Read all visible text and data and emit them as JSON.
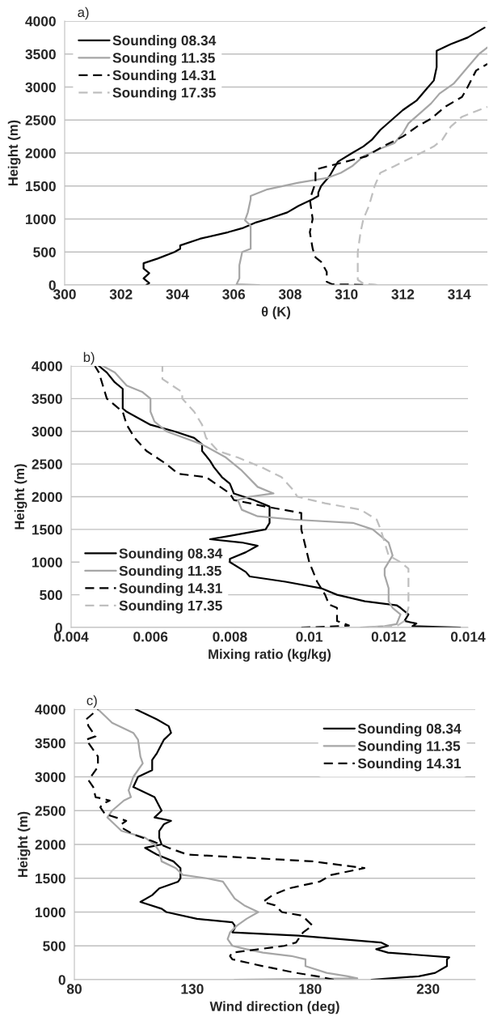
{
  "chart_data": [
    {
      "type": "line",
      "annotations": [
        "a)"
      ],
      "xlabel": "θ (K)",
      "ylabel": "Height (m)",
      "xlim": [
        300,
        315
      ],
      "xticks": [
        300,
        302,
        304,
        306,
        308,
        310,
        312,
        314
      ],
      "ylim": [
        0,
        4000
      ],
      "yticks": [
        0,
        500,
        1000,
        1500,
        2000,
        2500,
        3000,
        3500,
        4000
      ],
      "grid": "y",
      "legend": "top left",
      "series": [
        {
          "name": "Sounding 08.34",
          "color": "#000000",
          "line_style": "solid",
          "x": [
            302.9,
            303.0,
            302.8,
            303.0,
            302.8,
            302.8,
            303.3,
            303.9,
            304.1,
            304.1,
            304.8,
            305.8,
            306.3,
            306.8,
            307.2,
            307.9,
            308.3,
            308.8,
            309.0,
            309.0,
            309.1,
            309.4,
            309.6,
            309.7,
            310.2,
            310.6,
            310.9,
            311.2,
            311.6,
            312.0,
            312.5,
            312.8,
            313.1,
            313.2,
            313.2,
            313.7,
            314.3,
            314.9
          ],
          "values": [
            0,
            30,
            100,
            180,
            250,
            330,
            400,
            500,
            550,
            600,
            700,
            800,
            860,
            950,
            1000,
            1100,
            1200,
            1300,
            1350,
            1400,
            1500,
            1650,
            1800,
            1870,
            2000,
            2100,
            2200,
            2350,
            2500,
            2650,
            2800,
            2950,
            3100,
            3300,
            3550,
            3650,
            3750,
            3900
          ]
        },
        {
          "name": "Sounding 11.35",
          "color": "#a6a6a6",
          "line_style": "solid",
          "x": [
            306.9,
            306.1,
            306.2,
            306.2,
            306.3,
            306.6,
            306.6,
            306.6,
            306.4,
            306.5,
            306.6,
            306.6,
            307.2,
            308.3,
            309.3,
            309.8,
            310.2,
            310.6,
            311.1,
            311.7,
            312.0,
            312.2,
            312.6,
            313.0,
            313.3,
            313.8,
            314.3,
            314.7,
            315.0
          ],
          "values": [
            0,
            10,
            100,
            300,
            500,
            550,
            700,
            900,
            980,
            1100,
            1300,
            1350,
            1450,
            1550,
            1620,
            1700,
            1800,
            1950,
            2050,
            2150,
            2300,
            2450,
            2600,
            2750,
            2900,
            3050,
            3300,
            3500,
            3600
          ]
        },
        {
          "name": "Sounding 14.31",
          "color": "#000000",
          "line_style": "dashed",
          "x": [
            311.1,
            309.5,
            309.3,
            309.3,
            309.1,
            308.9,
            308.8,
            308.7,
            308.8,
            308.7,
            308.9,
            308.9,
            309.8,
            310.7,
            311.3,
            312.0,
            312.5,
            313.0,
            313.5,
            314.1,
            314.3,
            314.6,
            315.0
          ],
          "values": [
            0,
            10,
            50,
            200,
            350,
            420,
            550,
            800,
            1000,
            1300,
            1550,
            1750,
            1850,
            1950,
            2100,
            2250,
            2400,
            2520,
            2700,
            2850,
            3000,
            3250,
            3350
          ]
        },
        {
          "name": "Sounding 17.35",
          "color": "#bfbfbf",
          "line_style": "dashed",
          "x": [
            311.1,
            310.6,
            310.4,
            310.4,
            310.4,
            310.5,
            310.6,
            310.8,
            311.0,
            311.2,
            311.7,
            312.4,
            313.1,
            313.4,
            313.7,
            314.1,
            315.0
          ],
          "values": [
            0,
            20,
            80,
            200,
            500,
            800,
            1000,
            1200,
            1500,
            1700,
            1800,
            1950,
            2100,
            2200,
            2400,
            2550,
            2700
          ]
        }
      ]
    },
    {
      "type": "line",
      "annotations": [
        "b)"
      ],
      "xlabel": "Mixing ratio (kg/kg)",
      "ylabel": "Height (m)",
      "xlim": [
        0.004,
        0.014
      ],
      "xticks": [
        0.004,
        0.006,
        0.008,
        0.01,
        0.012,
        0.014
      ],
      "ylim": [
        0,
        4000
      ],
      "yticks": [
        0,
        500,
        1000,
        1500,
        2000,
        2500,
        3000,
        3500,
        4000
      ],
      "grid": "y",
      "legend": "bottom left",
      "series": [
        {
          "name": "Sounding 08.34",
          "color": "#000000",
          "line_style": "solid",
          "x": [
            0.0138,
            0.0126,
            0.0127,
            0.0124,
            0.0125,
            0.0123,
            0.0122,
            0.0114,
            0.0107,
            0.0103,
            0.0094,
            0.0085,
            0.0084,
            0.008,
            0.008,
            0.0084,
            0.0087,
            0.0083,
            0.0075,
            0.008,
            0.0089,
            0.009,
            0.009,
            0.0086,
            0.0081,
            0.008,
            0.0078,
            0.0076,
            0.0075,
            0.0073,
            0.0073,
            0.0071,
            0.0066,
            0.006,
            0.0054,
            0.0053,
            0.0053,
            0.0051,
            0.0049,
            0.0047
          ],
          "values": [
            0,
            20,
            60,
            100,
            200,
            300,
            340,
            400,
            500,
            600,
            700,
            780,
            850,
            1000,
            1050,
            1150,
            1250,
            1300,
            1350,
            1400,
            1500,
            1600,
            1850,
            1950,
            2050,
            2200,
            2300,
            2450,
            2550,
            2700,
            2800,
            2900,
            3000,
            3100,
            3300,
            3350,
            3650,
            3750,
            3900,
            4000
          ]
        },
        {
          "name": "Sounding 11.35",
          "color": "#a6a6a6",
          "line_style": "solid",
          "x": [
            0.0113,
            0.0119,
            0.0122,
            0.0123,
            0.0121,
            0.012,
            0.012,
            0.0119,
            0.0119,
            0.0121,
            0.012,
            0.0116,
            0.0111,
            0.0096,
            0.0087,
            0.0083,
            0.0082,
            0.0085,
            0.0091,
            0.0087,
            0.0083,
            0.0079,
            0.0073,
            0.0064,
            0.0061,
            0.006,
            0.006,
            0.0058,
            0.0054,
            0.0051,
            0.0048
          ],
          "values": [
            0,
            20,
            50,
            200,
            300,
            400,
            600,
            800,
            900,
            1100,
            1300,
            1500,
            1600,
            1650,
            1700,
            1800,
            1950,
            2000,
            2050,
            2150,
            2400,
            2600,
            2800,
            3000,
            3150,
            3300,
            3500,
            3600,
            3700,
            3900,
            4000
          ]
        },
        {
          "name": "Sounding 14.31",
          "color": "#000000",
          "line_style": "dashed",
          "x": [
            0.0098,
            0.0104,
            0.011,
            0.0107,
            0.0107,
            0.0105,
            0.0104,
            0.0102,
            0.01,
            0.0098,
            0.0098,
            0.0089,
            0.0081,
            0.008,
            0.0074,
            0.0067,
            0.0064,
            0.0059,
            0.0056,
            0.0054,
            0.0053,
            0.0049,
            0.0048,
            0.0047,
            0.0046
          ],
          "values": [
            0,
            10,
            30,
            100,
            300,
            350,
            500,
            700,
            1000,
            1500,
            1750,
            1850,
            1950,
            2050,
            2300,
            2350,
            2500,
            2700,
            2900,
            3100,
            3300,
            3500,
            3700,
            3900,
            4000
          ]
        },
        {
          "name": "Sounding 17.35",
          "color": "#bfbfbf",
          "line_style": "dashed",
          "x": [
            0.0115,
            0.0122,
            0.0124,
            0.0125,
            0.0125,
            0.0125,
            0.0125,
            0.0123,
            0.012,
            0.0118,
            0.0117,
            0.0113,
            0.0104,
            0.0097,
            0.0096,
            0.0093,
            0.0088,
            0.0082,
            0.0077,
            0.0074,
            0.0073,
            0.0071,
            0.0068,
            0.0068,
            0.0063,
            0.0063
          ],
          "values": [
            0,
            20,
            100,
            300,
            500,
            700,
            900,
            1000,
            1100,
            1500,
            1650,
            1800,
            1900,
            2000,
            2100,
            2300,
            2450,
            2600,
            2700,
            2900,
            3100,
            3300,
            3500,
            3600,
            3800,
            4000
          ]
        }
      ]
    },
    {
      "type": "line",
      "annotations": [
        "c)"
      ],
      "xlabel": "Wind direction (deg)",
      "ylabel": "Height (m)",
      "xlim": [
        80,
        250
      ],
      "xticks": [
        80,
        130,
        180,
        230
      ],
      "ylim": [
        0,
        4000
      ],
      "yticks": [
        0,
        500,
        1000,
        1500,
        2000,
        2500,
        3000,
        3500,
        4000
      ],
      "grid": "y",
      "legend": "top right",
      "series": [
        {
          "name": "Sounding 08.34",
          "color": "#000000",
          "line_style": "solid",
          "x": [
            206,
            226,
            233,
            238,
            238,
            239,
            213,
            208,
            213,
            210,
            175,
            147,
            148,
            148,
            147,
            132,
            119,
            117,
            108,
            113,
            116,
            124,
            125,
            125,
            122,
            115,
            110,
            117,
            116,
            116,
            118,
            121,
            114,
            117,
            114,
            105,
            107,
            113,
            113,
            115,
            118,
            121,
            120,
            115,
            106
          ],
          "values": [
            0,
            50,
            100,
            200,
            300,
            330,
            400,
            450,
            500,
            550,
            650,
            700,
            760,
            800,
            850,
            900,
            1000,
            1050,
            1150,
            1250,
            1350,
            1450,
            1500,
            1650,
            1750,
            1850,
            1950,
            2000,
            2100,
            2200,
            2300,
            2350,
            2400,
            2500,
            2700,
            2850,
            3000,
            3100,
            3250,
            3350,
            3550,
            3650,
            3750,
            3850,
            4000
          ]
        },
        {
          "name": "Sounding 11.35",
          "color": "#a6a6a6",
          "line_style": "solid",
          "x": [
            148,
            200,
            196,
            187,
            178,
            178,
            172,
            160,
            153,
            147,
            145,
            146,
            149,
            153,
            158,
            152,
            148,
            143,
            136,
            126,
            123,
            117,
            116,
            114,
            110,
            100,
            97,
            94,
            96,
            101,
            104,
            103,
            105,
            109,
            108,
            107,
            105,
            96,
            90
          ],
          "values": [
            0,
            20,
            50,
            100,
            200,
            300,
            350,
            400,
            450,
            500,
            600,
            700,
            800,
            900,
            1000,
            1100,
            1200,
            1450,
            1500,
            1550,
            1650,
            1750,
            1900,
            2000,
            2100,
            2200,
            2300,
            2400,
            2500,
            2650,
            2700,
            2800,
            3000,
            3200,
            3300,
            3550,
            3650,
            3800,
            4000
          ]
        },
        {
          "name": "Sounding 14.31",
          "color": "#000000",
          "line_style": "dashed",
          "x": [
            190,
            183,
            174,
            160,
            147,
            146,
            147,
            169,
            174,
            177,
            181,
            178,
            176,
            168,
            165,
            160,
            164,
            171,
            184,
            189,
            203,
            181,
            155,
            128,
            120,
            113,
            105,
            100,
            100,
            102,
            93,
            91,
            92,
            95,
            89,
            88,
            86,
            90,
            90,
            87,
            85,
            89,
            86,
            85,
            90
          ],
          "values": [
            0,
            50,
            100,
            200,
            300,
            350,
            400,
            500,
            550,
            700,
            800,
            900,
            950,
            1000,
            1100,
            1150,
            1250,
            1350,
            1450,
            1550,
            1650,
            1750,
            1800,
            1850,
            1950,
            2050,
            2150,
            2250,
            2300,
            2350,
            2450,
            2550,
            2600,
            2650,
            2700,
            2850,
            2950,
            3150,
            3300,
            3450,
            3550,
            3600,
            3750,
            3850,
            4000
          ]
        }
      ]
    }
  ]
}
